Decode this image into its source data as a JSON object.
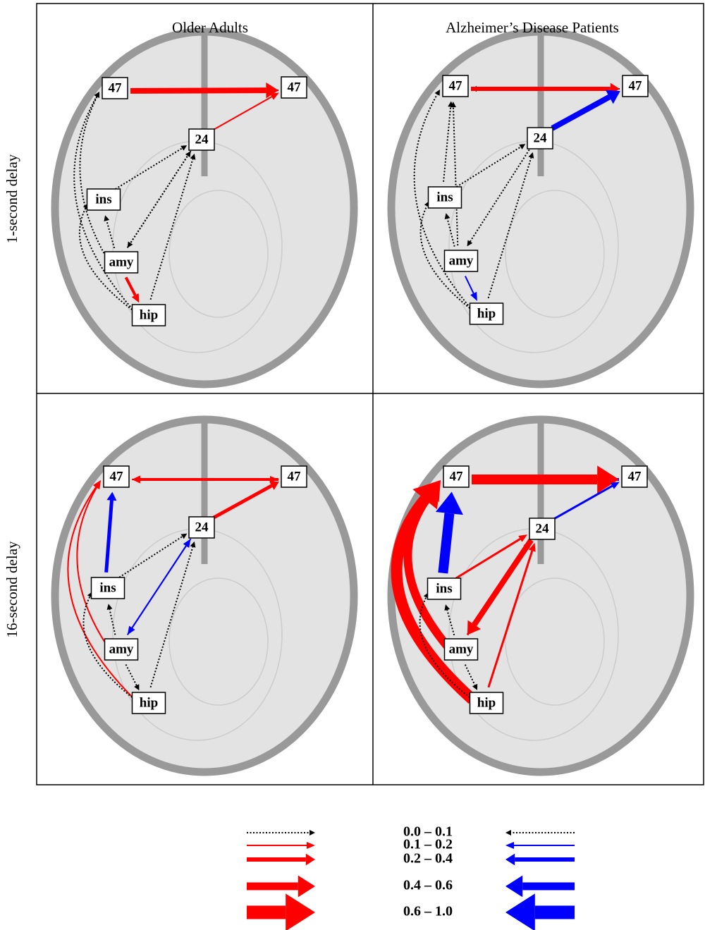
{
  "column_titles": [
    "Older Adults",
    "Alzheimer’s Disease Patients"
  ],
  "row_labels": [
    "1-second delay",
    "16-second delay"
  ],
  "panels": [
    {
      "nodes": [
        "47",
        "47",
        "24",
        "ins",
        "amy",
        "hip"
      ]
    },
    {
      "nodes": [
        "47",
        "47",
        "24",
        "ins",
        "amy",
        "hip"
      ]
    },
    {
      "nodes": [
        "47",
        "47",
        "24",
        "ins",
        "amy",
        "hip"
      ]
    },
    {
      "nodes": [
        "47",
        "47",
        "24",
        "ins",
        "amy",
        "hip"
      ]
    }
  ],
  "legend": {
    "ranges": [
      "0.0 – 0.1",
      "0.1 – 0.2",
      "0.2 – 0.4",
      "0.4 – 0.6",
      "0.6 – 1.0"
    ]
  }
}
